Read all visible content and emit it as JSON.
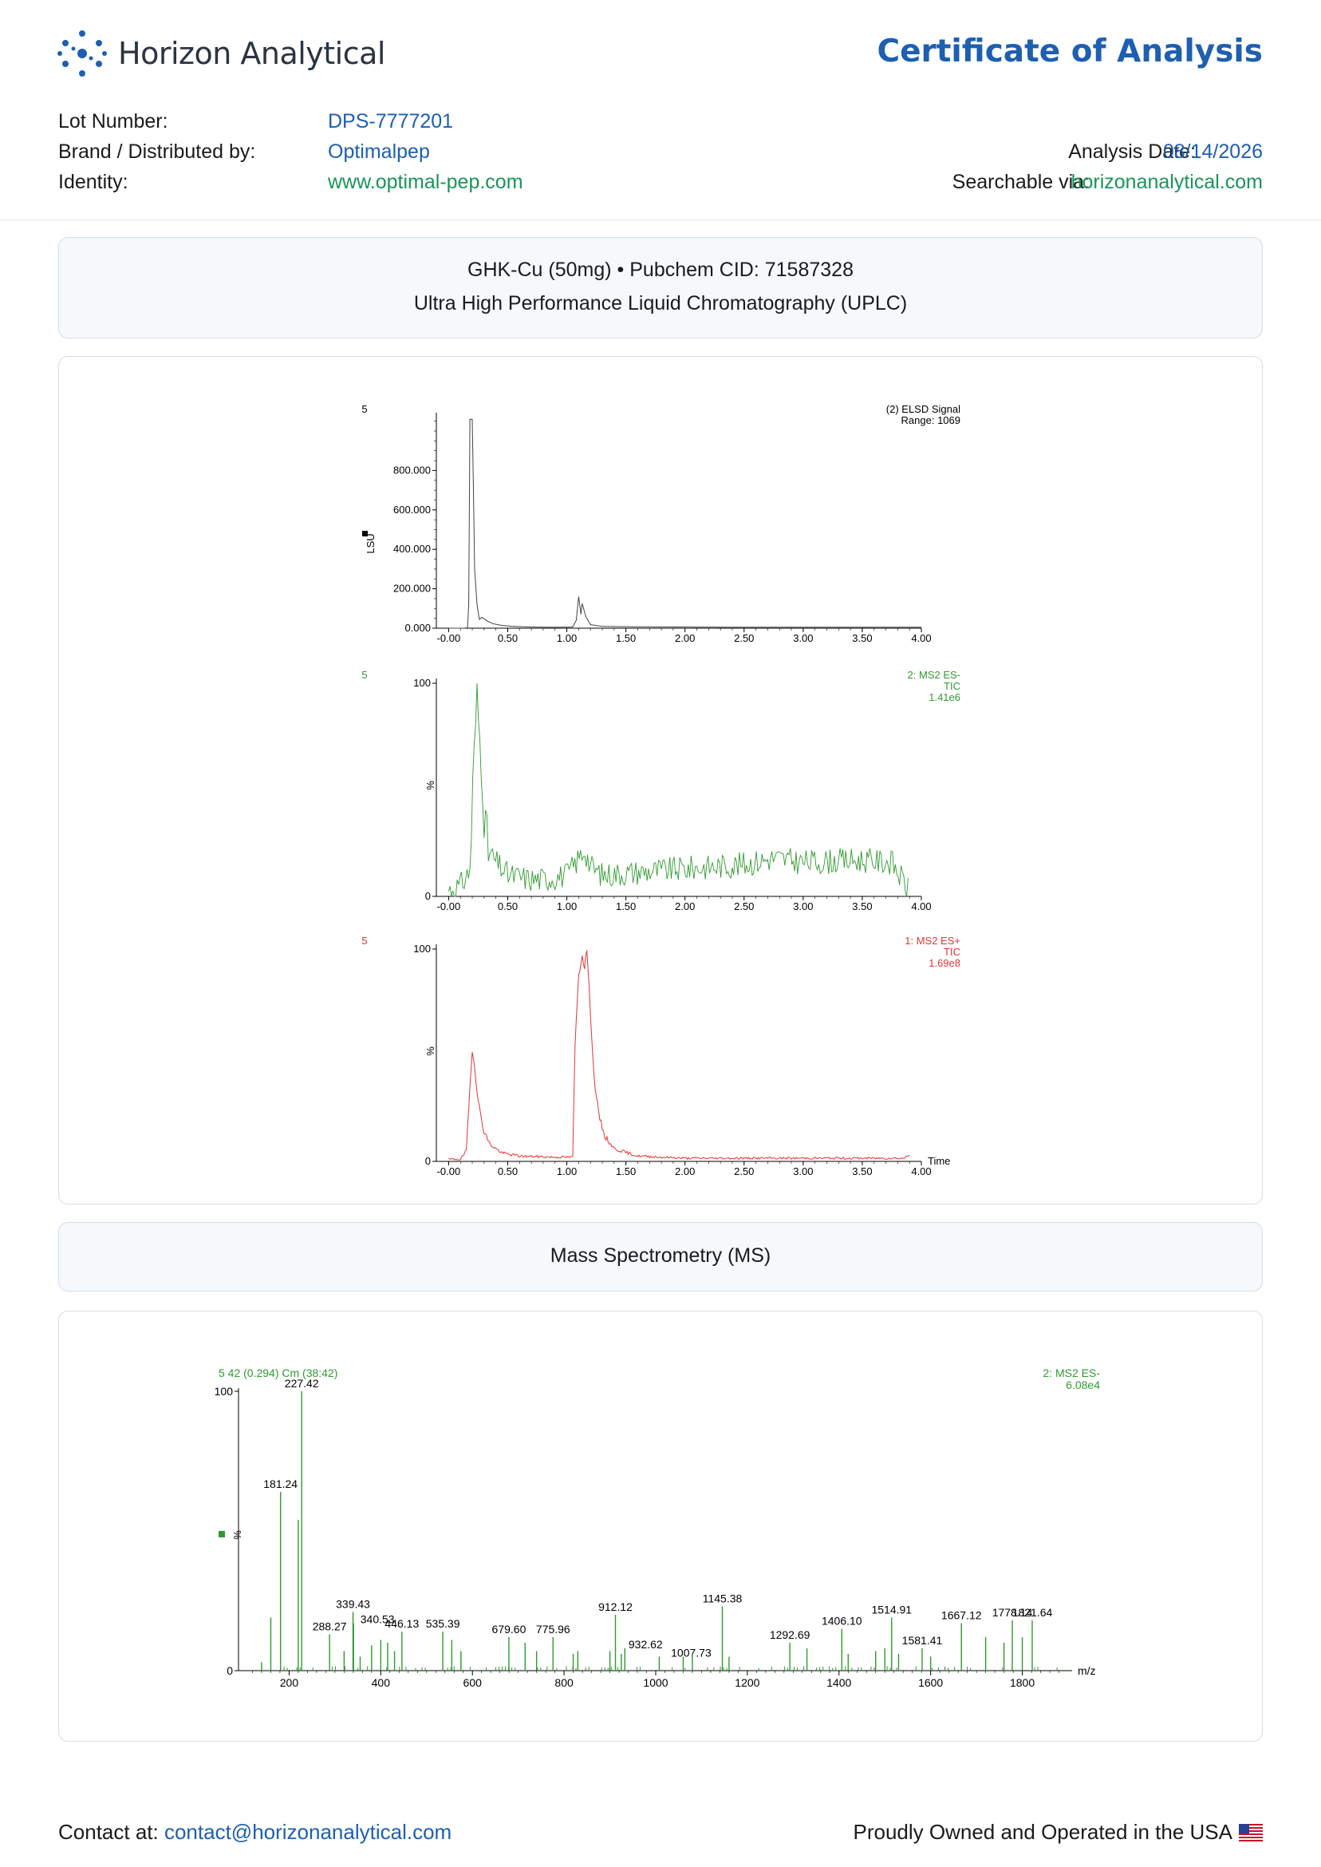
{
  "header": {
    "company": "Horizon Analytical",
    "title": "Certificate of Analysis"
  },
  "meta": {
    "lot_label": "Lot Number:",
    "lot_value": "DPS-7777201",
    "brand_label": "Brand / Distributed by:",
    "brand_value": "Optimalpep",
    "identity_label": "Identity:",
    "identity_value": "www.optimal-pep.com",
    "date_label": "Analysis Date:",
    "date_value": "08/14/2026",
    "search_label": "Searchable via:",
    "search_value": "horizonanalytical.com"
  },
  "compound": {
    "line1": "GHK-Cu (50mg) • Pubchem CID: 71587328",
    "line2": "Ultra High Performance Liquid Chromatography (UPLC)"
  },
  "ms_section": {
    "title": "Mass Spectrometry (MS)"
  },
  "footer": {
    "contact_label": "Contact at:",
    "contact_email": "contact@horizonanalytical.com",
    "usa_text": "Proudly Owned and Operated in the USA"
  },
  "colors": {
    "accent": "#1d5fb0",
    "green": "#18955a",
    "elsd": "#444444",
    "ms_neg": "#2e9a2e",
    "ms_pos": "#e33333"
  },
  "chart_data": [
    {
      "type": "line",
      "panel": "elsd",
      "left_label": "5",
      "info_lines": [
        "(2) ELSD Signal",
        "Range: 1069"
      ],
      "ylabel": "LSU",
      "xlim": [
        -0.05,
        4.0
      ],
      "ylim": [
        0,
        1069
      ],
      "x_ticks": [
        "-0.00",
        "0.50",
        "1.00",
        "1.50",
        "2.00",
        "2.50",
        "3.00",
        "3.50",
        "4.00"
      ],
      "y_ticks": [
        {
          "v": 0,
          "label": "0.000"
        },
        {
          "v": 200,
          "label": "200.000"
        },
        {
          "v": 400,
          "label": "400.000"
        },
        {
          "v": 600,
          "label": "600.000"
        },
        {
          "v": 800,
          "label": "800.000"
        }
      ],
      "points": [
        [
          0.0,
          0
        ],
        [
          0.12,
          0
        ],
        [
          0.16,
          2
        ],
        [
          0.17,
          120
        ],
        [
          0.18,
          1060
        ],
        [
          0.2,
          1060
        ],
        [
          0.21,
          700
        ],
        [
          0.22,
          300
        ],
        [
          0.24,
          120
        ],
        [
          0.26,
          45
        ],
        [
          0.28,
          55
        ],
        [
          0.3,
          48
        ],
        [
          0.33,
          35
        ],
        [
          0.38,
          22
        ],
        [
          0.45,
          14
        ],
        [
          0.55,
          9
        ],
        [
          0.7,
          6
        ],
        [
          0.9,
          5
        ],
        [
          1.05,
          6
        ],
        [
          1.08,
          40
        ],
        [
          1.1,
          160
        ],
        [
          1.12,
          70
        ],
        [
          1.13,
          125
        ],
        [
          1.16,
          60
        ],
        [
          1.2,
          18
        ],
        [
          1.3,
          9
        ],
        [
          1.6,
          7
        ],
        [
          2.0,
          6
        ],
        [
          2.5,
          5
        ],
        [
          3.0,
          5
        ],
        [
          3.5,
          5
        ],
        [
          4.0,
          5
        ]
      ]
    },
    {
      "type": "line",
      "panel": "ms_neg",
      "left_label": "5",
      "info_lines": [
        "2: MS2 ES-",
        "TIC",
        "1.41e6"
      ],
      "ylabel": "%",
      "xlim": [
        -0.05,
        4.0
      ],
      "ylim": [
        0,
        100
      ],
      "x_ticks": [
        "-0.00",
        "0.50",
        "1.00",
        "1.50",
        "2.00",
        "2.50",
        "3.00",
        "3.50",
        "4.00"
      ],
      "y_ticks": [
        {
          "v": 0,
          "label": "0"
        },
        {
          "v": 100,
          "label": "100"
        }
      ],
      "anchors": [
        [
          0.0,
          3
        ],
        [
          0.1,
          5
        ],
        [
          0.18,
          12
        ],
        [
          0.2,
          45
        ],
        [
          0.22,
          70
        ],
        [
          0.24,
          99
        ],
        [
          0.26,
          75
        ],
        [
          0.28,
          65
        ],
        [
          0.3,
          40
        ],
        [
          0.33,
          22
        ],
        [
          0.4,
          16
        ],
        [
          0.5,
          10
        ],
        [
          0.6,
          9
        ],
        [
          0.7,
          8
        ],
        [
          0.8,
          8
        ],
        [
          0.9,
          9
        ],
        [
          1.0,
          10
        ],
        [
          1.08,
          16
        ],
        [
          1.15,
          22
        ],
        [
          1.2,
          14
        ],
        [
          1.3,
          10
        ],
        [
          1.5,
          11
        ],
        [
          2.0,
          13
        ],
        [
          2.5,
          15
        ],
        [
          2.75,
          18
        ],
        [
          3.0,
          16
        ],
        [
          3.5,
          17
        ],
        [
          3.75,
          16
        ],
        [
          3.9,
          2
        ]
      ],
      "noise": 6
    },
    {
      "type": "line",
      "panel": "ms_pos",
      "left_label": "5",
      "info_lines": [
        "1: MS2 ES+",
        "TIC",
        "1.69e8"
      ],
      "ylabel": "%",
      "xlabel": "Time",
      "xlim": [
        -0.05,
        4.0
      ],
      "ylim": [
        0,
        100
      ],
      "x_ticks": [
        "-0.00",
        "0.50",
        "1.00",
        "1.50",
        "2.00",
        "2.50",
        "3.00",
        "3.50",
        "4.00"
      ],
      "y_ticks": [
        {
          "v": 0,
          "label": "0"
        },
        {
          "v": 100,
          "label": "100"
        }
      ],
      "points": [
        [
          0.0,
          1
        ],
        [
          0.1,
          1
        ],
        [
          0.15,
          5
        ],
        [
          0.18,
          35
        ],
        [
          0.2,
          53
        ],
        [
          0.22,
          45
        ],
        [
          0.25,
          28
        ],
        [
          0.3,
          14
        ],
        [
          0.35,
          8
        ],
        [
          0.45,
          4
        ],
        [
          0.6,
          2.5
        ],
        [
          0.9,
          2
        ],
        [
          1.05,
          2
        ],
        [
          1.07,
          55
        ],
        [
          1.1,
          88
        ],
        [
          1.13,
          97
        ],
        [
          1.15,
          92
        ],
        [
          1.17,
          100
        ],
        [
          1.2,
          70
        ],
        [
          1.23,
          40
        ],
        [
          1.27,
          22
        ],
        [
          1.32,
          12
        ],
        [
          1.4,
          6
        ],
        [
          1.6,
          2.5
        ],
        [
          2.0,
          1.5
        ],
        [
          3.0,
          1.5
        ],
        [
          3.85,
          1.5
        ],
        [
          3.9,
          3
        ]
      ]
    },
    {
      "type": "bar",
      "panel": "mass_spectrum",
      "title_line": "5 42 (0.294) Cm (38:42)",
      "info_lines": [
        "2: MS2 ES-",
        "6.08e4"
      ],
      "xlabel": "m/z",
      "ylabel": "%",
      "xlim": [
        100,
        1900
      ],
      "ylim": [
        0,
        100
      ],
      "x_ticks": [
        200,
        400,
        600,
        800,
        1000,
        1200,
        1400,
        1600,
        1800
      ],
      "y_ticks": [
        {
          "v": 0,
          "label": "0"
        },
        {
          "v": 100,
          "label": "100"
        }
      ],
      "peaks": [
        {
          "mz": 227.42,
          "i": 100,
          "label": "227.42"
        },
        {
          "mz": 181.24,
          "i": 64,
          "label": "181.24"
        },
        {
          "mz": 220,
          "i": 54
        },
        {
          "mz": 160,
          "i": 19
        },
        {
          "mz": 140,
          "i": 3
        },
        {
          "mz": 339.43,
          "i": 21,
          "label": "339.43"
        },
        {
          "mz": 340.53,
          "i": 17,
          "label": "340.53"
        },
        {
          "mz": 288.27,
          "i": 13,
          "label": "288.27"
        },
        {
          "mz": 320,
          "i": 7
        },
        {
          "mz": 355,
          "i": 5
        },
        {
          "mz": 380,
          "i": 9
        },
        {
          "mz": 400,
          "i": 11
        },
        {
          "mz": 415,
          "i": 10
        },
        {
          "mz": 430,
          "i": 7
        },
        {
          "mz": 446.13,
          "i": 14,
          "label": "446.13"
        },
        {
          "mz": 535.39,
          "i": 14,
          "label": "535.39"
        },
        {
          "mz": 555,
          "i": 11
        },
        {
          "mz": 575,
          "i": 7
        },
        {
          "mz": 679.6,
          "i": 12,
          "label": "679.60"
        },
        {
          "mz": 715,
          "i": 10
        },
        {
          "mz": 740,
          "i": 7
        },
        {
          "mz": 775.96,
          "i": 12,
          "label": "775.96"
        },
        {
          "mz": 820,
          "i": 6
        },
        {
          "mz": 830,
          "i": 7
        },
        {
          "mz": 900,
          "i": 7
        },
        {
          "mz": 912.12,
          "i": 20,
          "label": "912.12"
        },
        {
          "mz": 932.62,
          "i": 8,
          "label": "932.62"
        },
        {
          "mz": 925,
          "i": 6
        },
        {
          "mz": 1007.73,
          "i": 5,
          "label": "1007.73"
        },
        {
          "mz": 1060,
          "i": 5
        },
        {
          "mz": 1080,
          "i": 6
        },
        {
          "mz": 1145.38,
          "i": 23,
          "label": "1145.38"
        },
        {
          "mz": 1160,
          "i": 5
        },
        {
          "mz": 1292.69,
          "i": 10,
          "label": "1292.69"
        },
        {
          "mz": 1330,
          "i": 8
        },
        {
          "mz": 1406.1,
          "i": 15,
          "label": "1406.10"
        },
        {
          "mz": 1420,
          "i": 6
        },
        {
          "mz": 1480,
          "i": 7
        },
        {
          "mz": 1500,
          "i": 8
        },
        {
          "mz": 1514.91,
          "i": 19,
          "label": "1514.91"
        },
        {
          "mz": 1530,
          "i": 6
        },
        {
          "mz": 1581.41,
          "i": 8,
          "label": "1581.41"
        },
        {
          "mz": 1600,
          "i": 5
        },
        {
          "mz": 1667.12,
          "i": 17,
          "label": "1667.12"
        },
        {
          "mz": 1720,
          "i": 12
        },
        {
          "mz": 1760,
          "i": 10
        },
        {
          "mz": 1778.14,
          "i": 18,
          "label": "1778.14"
        },
        {
          "mz": 1800,
          "i": 12
        },
        {
          "mz": 1821.64,
          "i": 18,
          "label": "1821.64"
        }
      ]
    }
  ]
}
